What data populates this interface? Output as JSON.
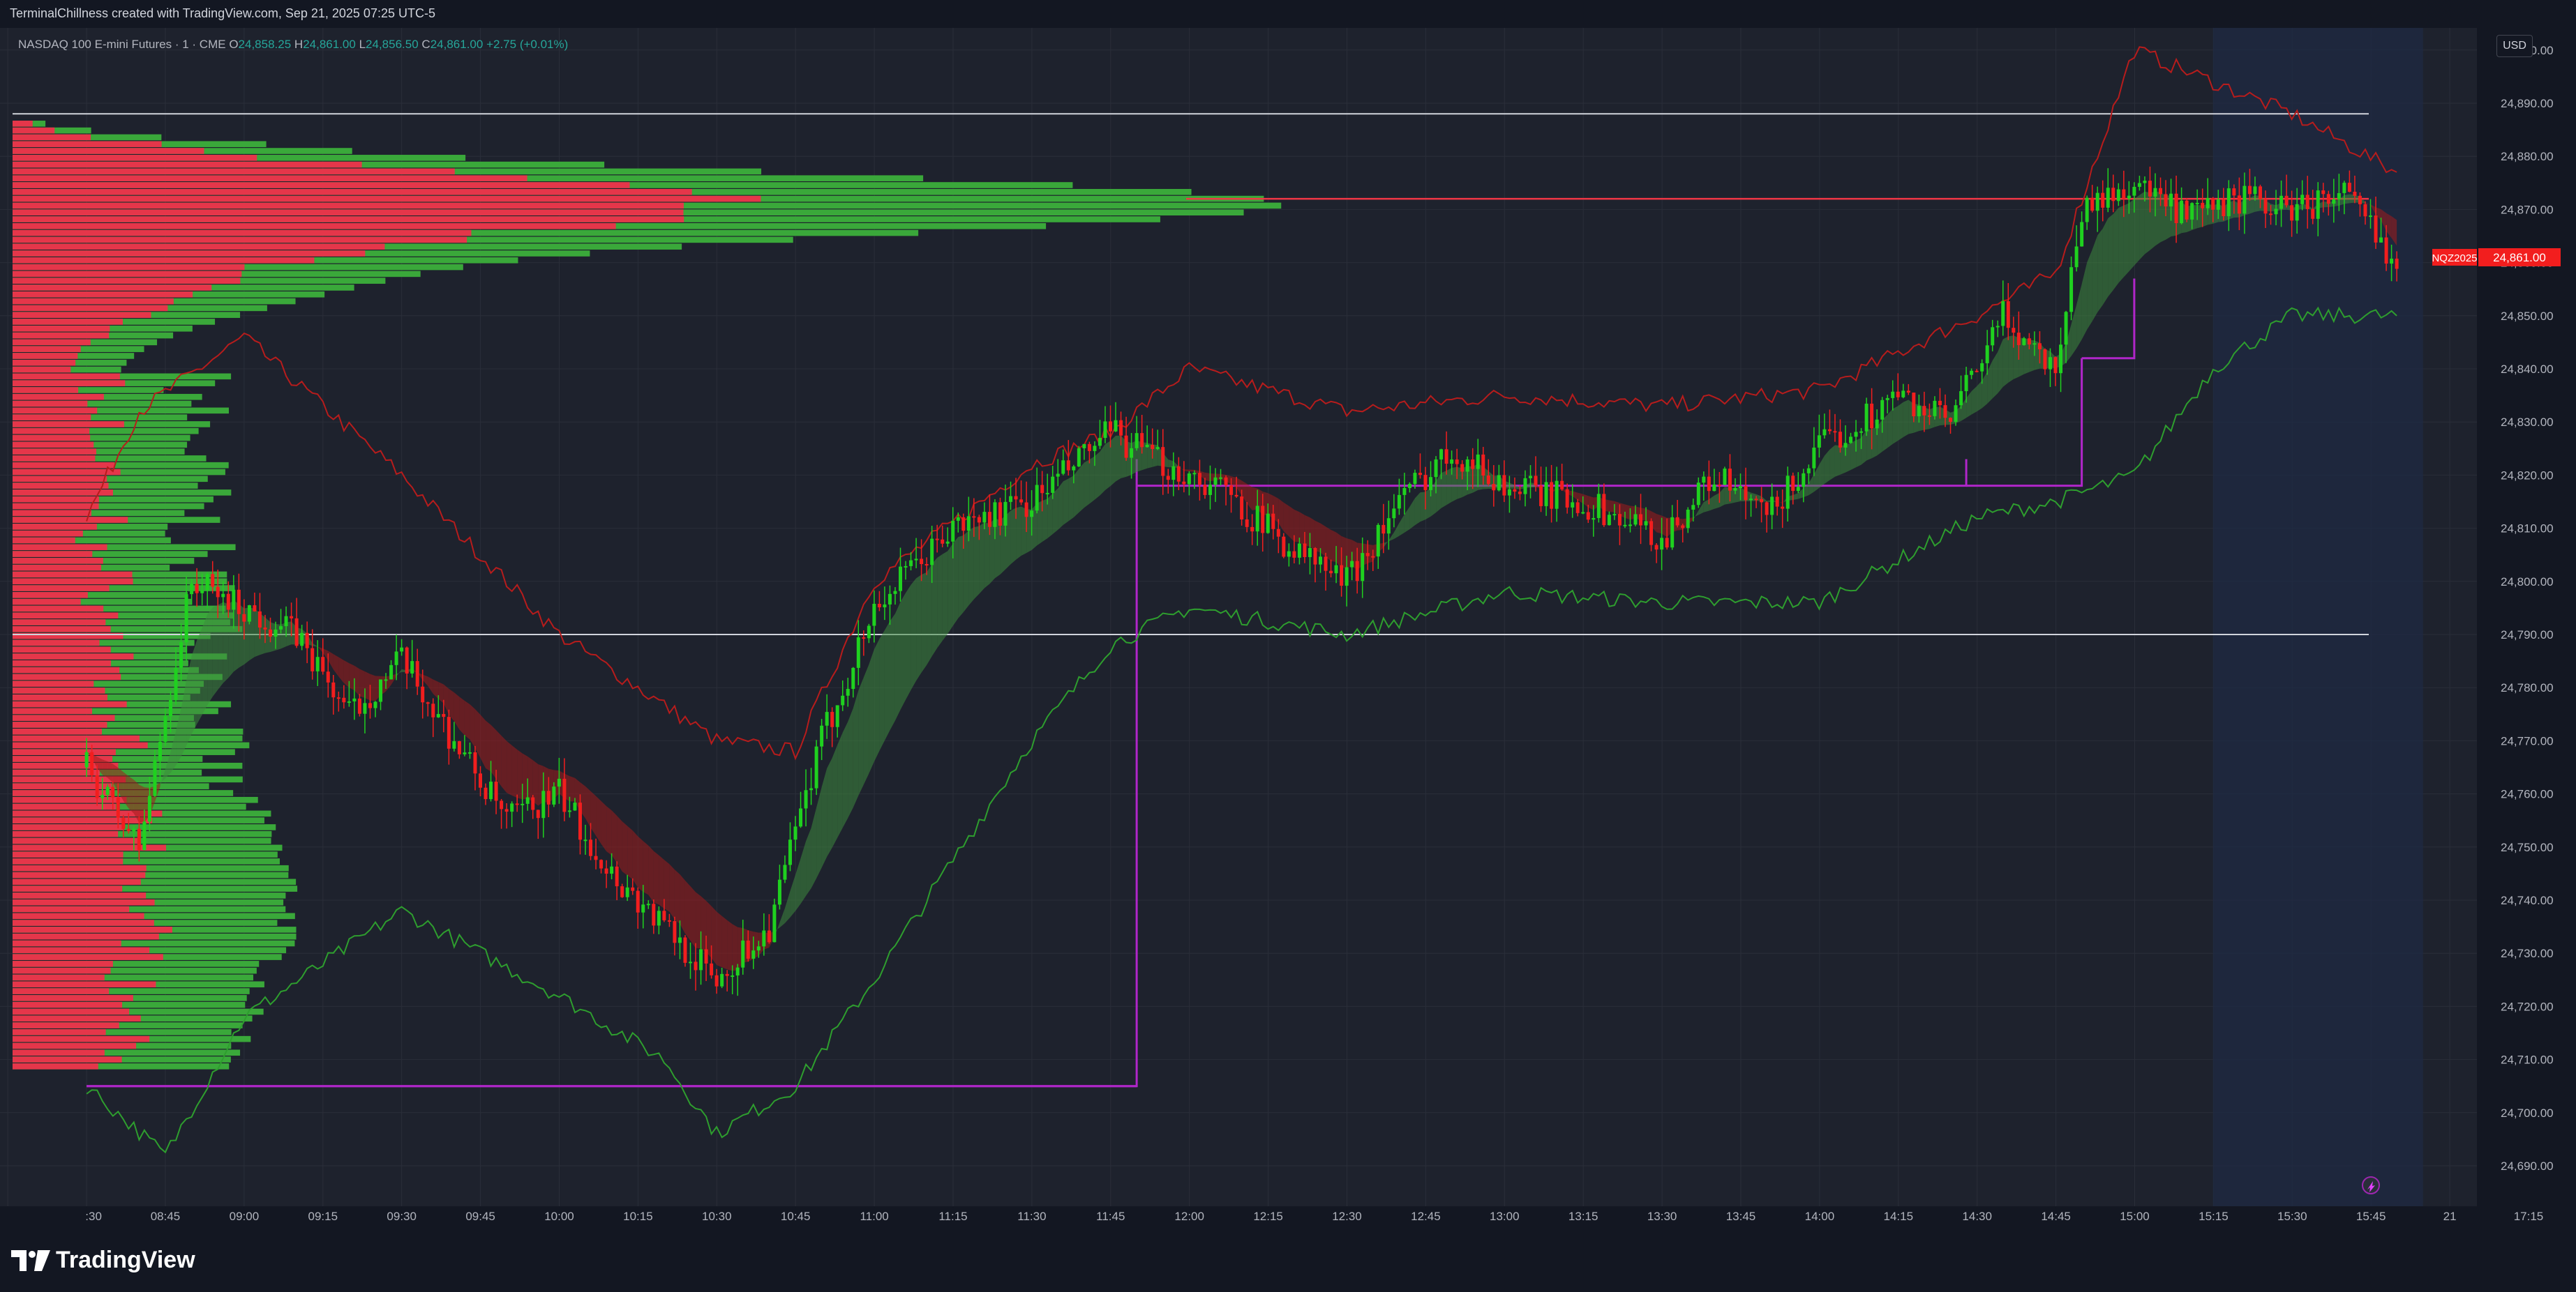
{
  "credit": "TerminalChillness created with TradingView.com, Sep 21, 2025 07:25 UTC-5",
  "legend": {
    "symbol": "NASDAQ 100 E-mini Futures · 1 · CME",
    "o_label": "O",
    "o": "24,858.25",
    "h_label": "H",
    "h": "24,861.00",
    "l_label": "L",
    "l": "24,856.50",
    "c_label": "C",
    "c": "24,861.00",
    "change": "+2.75 (+0.01%)"
  },
  "currency": "USD",
  "last_price": {
    "ticker": "NQZ2025",
    "price": "24,861.00",
    "value": 24861
  },
  "logo": {
    "text": "TradingView",
    "icon": "tradingview-logo-icon"
  },
  "colors": {
    "up": "#1fd11f",
    "down": "#f21e1e",
    "vwap_upper": "#b71c1c",
    "vwap_lower": "#2e9e2e",
    "box": "#b026c9",
    "poc": "#f23645",
    "level": "#d1d4dc",
    "vol_up": "#3aa83a",
    "vol_down": "#e5364a"
  },
  "chart_data": {
    "type": "candlestick",
    "interval": "1",
    "y_ticks": [
      "24,690.00",
      "24,700.00",
      "24,710.00",
      "24,720.00",
      "24,730.00",
      "24,740.00",
      "24,750.00",
      "24,760.00",
      "24,770.00",
      "24,780.00",
      "24,790.00",
      "24,800.00",
      "24,810.00",
      "24,820.00",
      "24,830.00",
      "24,840.00",
      "24,850.00",
      "24,860.00",
      "24,870.00",
      "24,880.00",
      "24,890.00",
      "24,900.00"
    ],
    "x_ticks": [
      ":30",
      "08:45",
      "09:00",
      "09:15",
      "09:30",
      "09:45",
      "10:00",
      "10:15",
      "10:30",
      "10:45",
      "11:00",
      "11:15",
      "11:30",
      "11:45",
      "12:00",
      "12:15",
      "12:30",
      "12:45",
      "13:00",
      "13:15",
      "13:30",
      "13:45",
      "14:00",
      "14:15",
      "14:30",
      "14:45",
      "15:00",
      "15:15",
      "15:30",
      "15:45",
      "21",
      "17:15"
    ],
    "price_path": [
      [
        "08:30",
        24765
      ],
      [
        "08:40",
        24750
      ],
      [
        "08:50",
        24800
      ],
      [
        "09:00",
        24795
      ],
      [
        "09:10",
        24790
      ],
      [
        "09:20",
        24775
      ],
      [
        "09:30",
        24785
      ],
      [
        "09:40",
        24770
      ],
      [
        "09:50",
        24755
      ],
      [
        "10:00",
        24760
      ],
      [
        "10:10",
        24745
      ],
      [
        "10:20",
        24735
      ],
      [
        "10:30",
        24725
      ],
      [
        "10:40",
        24735
      ],
      [
        "10:50",
        24770
      ],
      [
        "11:00",
        24795
      ],
      [
        "11:15",
        24810
      ],
      [
        "11:30",
        24815
      ],
      [
        "11:45",
        24828
      ],
      [
        "11:55",
        24822
      ],
      [
        "12:05",
        24818
      ],
      [
        "12:20",
        24806
      ],
      [
        "12:30",
        24800
      ],
      [
        "12:40",
        24815
      ],
      [
        "12:50",
        24825
      ],
      [
        "13:00",
        24818
      ],
      [
        "13:15",
        24815
      ],
      [
        "13:30",
        24808
      ],
      [
        "13:40",
        24820
      ],
      [
        "13:50",
        24812
      ],
      [
        "14:00",
        24825
      ],
      [
        "14:15",
        24835
      ],
      [
        "14:25",
        24830
      ],
      [
        "14:35",
        24850
      ],
      [
        "14:45",
        24840
      ],
      [
        "14:50",
        24870
      ],
      [
        "15:00",
        24875
      ],
      [
        "15:10",
        24868
      ],
      [
        "15:20",
        24872
      ],
      [
        "15:30",
        24870
      ],
      [
        "15:40",
        24873
      ],
      [
        "15:50",
        24860
      ]
    ],
    "vwap_upper_path": [
      [
        "08:30",
        24812
      ],
      [
        "08:40",
        24832
      ],
      [
        "09:00",
        24846
      ],
      [
        "09:30",
        24820
      ],
      [
        "10:00",
        24790
      ],
      [
        "10:30",
        24770
      ],
      [
        "10:45",
        24768
      ],
      [
        "11:00",
        24800
      ],
      [
        "11:30",
        24822
      ],
      [
        "11:45",
        24828
      ],
      [
        "12:00",
        24840
      ],
      [
        "12:30",
        24832
      ],
      [
        "13:00",
        24835
      ],
      [
        "13:30",
        24833
      ],
      [
        "14:00",
        24836
      ],
      [
        "14:30",
        24850
      ],
      [
        "14:45",
        24858
      ],
      [
        "15:00",
        24900
      ],
      [
        "15:30",
        24888
      ],
      [
        "15:50",
        24877
      ]
    ],
    "vwap_lower_path": [
      [
        "08:30",
        24705
      ],
      [
        "08:45",
        24692
      ],
      [
        "09:00",
        24718
      ],
      [
        "09:30",
        24738
      ],
      [
        "10:00",
        24722
      ],
      [
        "10:20",
        24710
      ],
      [
        "10:30",
        24696
      ],
      [
        "10:45",
        24705
      ],
      [
        "11:00",
        24725
      ],
      [
        "11:30",
        24770
      ],
      [
        "11:45",
        24788
      ],
      [
        "12:00",
        24795
      ],
      [
        "12:30",
        24790
      ],
      [
        "13:00",
        24798
      ],
      [
        "13:30",
        24796
      ],
      [
        "14:00",
        24796
      ],
      [
        "14:30",
        24812
      ],
      [
        "14:45",
        24815
      ],
      [
        "15:00",
        24820
      ],
      [
        "15:15",
        24840
      ],
      [
        "15:30",
        24850
      ],
      [
        "15:50",
        24850
      ]
    ],
    "horizontal_levels": [
      24888,
      24872,
      24790
    ],
    "poc_level": 24872,
    "volume_profile": {
      "top": 24888,
      "bottom": 24708,
      "poc": 24872
    },
    "boxes": [
      {
        "from": "08:30",
        "to": "11:50",
        "top": 24823,
        "bottom": 24705
      },
      {
        "from": "11:50",
        "to": "14:28",
        "top": 24823,
        "bottom": 24818
      },
      {
        "from": "14:28",
        "to": "14:50",
        "top": 24842,
        "bottom": 24818
      },
      {
        "from": "14:50",
        "to": "15:00",
        "top": 24857,
        "bottom": 24842
      }
    ],
    "highlight_range": [
      "15:15",
      "15:55"
    ]
  }
}
